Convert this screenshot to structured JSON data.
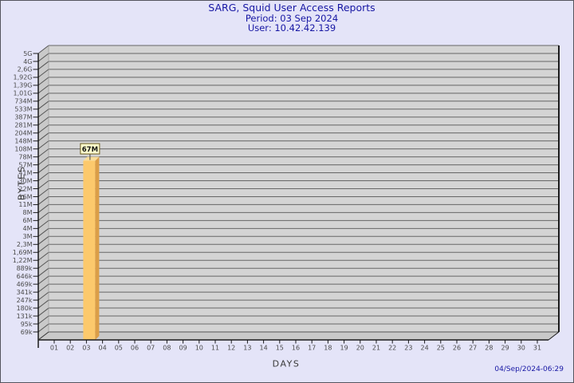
{
  "header": {
    "title": "SARG, Squid User Access Reports",
    "period": "Period: 03 Sep 2024",
    "user": "User: 10.42.42.139"
  },
  "footer": {
    "timestamp": "04/Sep/2024-06:29"
  },
  "chart_data": {
    "type": "bar",
    "title": "SARG, Squid User Access Reports",
    "subtitle_period": "Period: 03 Sep 2024",
    "subtitle_user": "User: 10.42.42.139",
    "xlabel": "DAYS",
    "ylabel": "BYTES",
    "y_scale": "logarithmic",
    "y_tick_labels": [
      "5G",
      "4G",
      "2,6G",
      "1,92G",
      "1,39G",
      "1,01G",
      "734M",
      "533M",
      "387M",
      "281M",
      "204M",
      "148M",
      "108M",
      "78M",
      "57M",
      "41M",
      "30M",
      "22M",
      "16M",
      "11M",
      "8M",
      "6M",
      "4M",
      "3M",
      "2,3M",
      "1,69M",
      "1,22M",
      "889k",
      "646k",
      "469k",
      "341k",
      "247k",
      "180k",
      "131k",
      "95k",
      "69k"
    ],
    "x_tick_labels": [
      "01",
      "02",
      "03",
      "04",
      "05",
      "06",
      "07",
      "08",
      "09",
      "10",
      "11",
      "12",
      "13",
      "14",
      "15",
      "16",
      "17",
      "18",
      "19",
      "20",
      "21",
      "22",
      "23",
      "24",
      "25",
      "26",
      "27",
      "28",
      "29",
      "30",
      "31"
    ],
    "bars": [
      {
        "day": "03",
        "value_label": "67M"
      }
    ],
    "legend": "none",
    "grid": "horizontal",
    "colors": {
      "page_background": "#E4E4F8",
      "title_text": "#1717A4",
      "plot_background": "#D4D4D4",
      "side_wall": "#C9C9C9",
      "gridline": "#666666",
      "axis_line": "#1a1a1a",
      "tick_text": "#4a4a4a",
      "bar_front": "#FCC96C",
      "bar_side": "#DB9E48",
      "bar_top": "#F9DD9A",
      "annotation_background": "#FFFFCC",
      "annotation_border": "#6b5b22",
      "annotation_text": "#111111"
    }
  }
}
